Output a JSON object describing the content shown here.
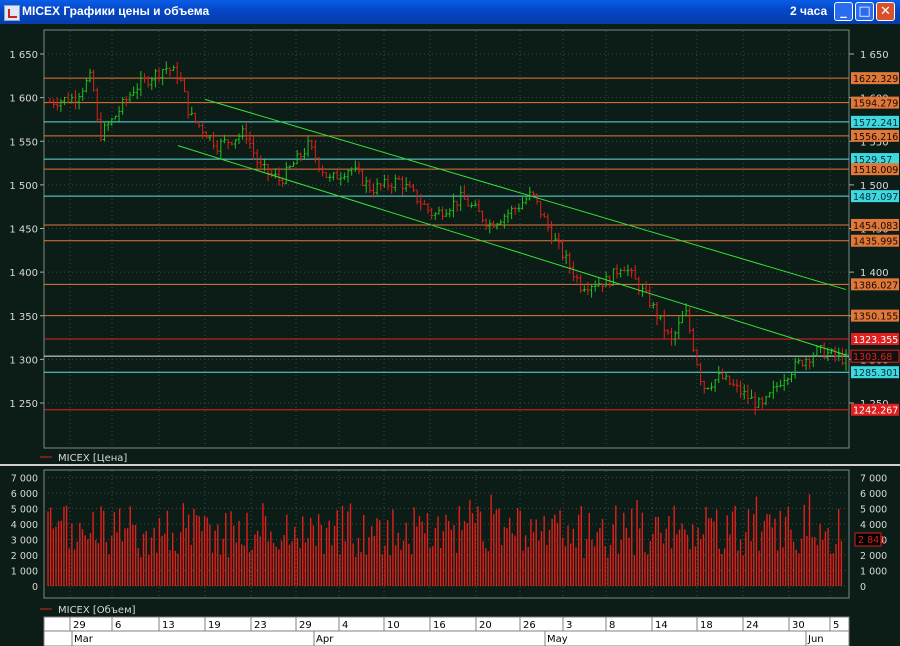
{
  "window": {
    "title": "MICEX Графики цены и объема",
    "timeframe": "2 часа",
    "minimize_glyph": "_",
    "maximize_glyph": "□",
    "close_glyph": "✕"
  },
  "colors": {
    "background": "#0c1c17",
    "grid": "#3c4a44",
    "axis_text": "#d8d8d8",
    "candle_up": "#22c01e",
    "candle_down": "#e0201a",
    "volume": "#e0201a",
    "channel": "#38e038",
    "orange_level": "#e0783a",
    "cyan_level": "#60e0e0",
    "red_level": "#e82020",
    "white_level": "#e8e8e8"
  },
  "price_panel": {
    "legend": "MICEX [Цена]",
    "y_ticks": [
      "1 650",
      "1 600",
      "1 550",
      "1 500",
      "1 450",
      "1 400",
      "1 350",
      "1 300",
      "1 250"
    ],
    "right_ticks": [
      "1 650",
      "1 600",
      "1 550",
      "1 500",
      "1 450",
      "1 400",
      "1 350",
      "1 300",
      "1 250"
    ],
    "levels": [
      {
        "label": "1622.329",
        "kind": "orange"
      },
      {
        "label": "1594.279",
        "kind": "orange"
      },
      {
        "label": "1572.241",
        "kind": "cyan"
      },
      {
        "label": "1556.216",
        "kind": "orange"
      },
      {
        "label": "1529.57",
        "kind": "cyan"
      },
      {
        "label": "1518.009",
        "kind": "orange"
      },
      {
        "label": "1487.097",
        "kind": "cyan"
      },
      {
        "label": "1454.083",
        "kind": "orange"
      },
      {
        "label": "1435.995",
        "kind": "orange"
      },
      {
        "label": "1386.027",
        "kind": "orange"
      },
      {
        "label": "1350.155",
        "kind": "orange"
      },
      {
        "label": "1323.355",
        "kind": "red"
      },
      {
        "label": "1303.68",
        "kind": "current"
      },
      {
        "label": "1285.301",
        "kind": "cyan"
      },
      {
        "label": "1242.267",
        "kind": "red"
      }
    ]
  },
  "volume_panel": {
    "legend": "MICEX [Объем]",
    "y_ticks": [
      "7 000",
      "6 000",
      "5 000",
      "4 000",
      "3 000",
      "2 000",
      "1 000",
      "0"
    ],
    "right_ticks": [
      "7 000",
      "6 000",
      "5 000",
      "4 000",
      "3 000",
      "2 000",
      "1 000",
      "0"
    ],
    "current_label": "2 843"
  },
  "time_axis": {
    "day_labels": [
      "29",
      "6",
      "13",
      "19",
      "23",
      "29",
      "4",
      "10",
      "16",
      "20",
      "26",
      "3",
      "8",
      "14",
      "18",
      "24",
      "30",
      "5"
    ],
    "month_labels": [
      "Mar",
      "Apr",
      "May",
      "Jun"
    ]
  },
  "chart_data": {
    "type": "candlestick",
    "series": [
      {
        "name": "MICEX [Цена]"
      },
      {
        "name": "MICEX [Объем]"
      }
    ],
    "x_start_label": "29 Mar",
    "x_end_label": "5 Jun",
    "price_ylim": [
      1200,
      1680
    ],
    "volume_ylim": [
      0,
      7000
    ],
    "price_path": [
      [
        0,
        1595
      ],
      [
        0.035,
        1600
      ],
      [
        0.06,
        1625
      ],
      [
        0.07,
        1555
      ],
      [
        0.09,
        1575
      ],
      [
        0.12,
        1610
      ],
      [
        0.165,
        1635
      ],
      [
        0.185,
        1625
      ],
      [
        0.2,
        1580
      ],
      [
        0.24,
        1545
      ],
      [
        0.28,
        1560
      ],
      [
        0.3,
        1520
      ],
      [
        0.33,
        1505
      ],
      [
        0.37,
        1545
      ],
      [
        0.4,
        1505
      ],
      [
        0.43,
        1520
      ],
      [
        0.46,
        1495
      ],
      [
        0.5,
        1505
      ],
      [
        0.55,
        1465
      ],
      [
        0.59,
        1485
      ],
      [
        0.63,
        1455
      ],
      [
        0.67,
        1475
      ],
      [
        0.69,
        1490
      ],
      [
        0.72,
        1440
      ],
      [
        0.76,
        1385
      ],
      [
        0.8,
        1390
      ],
      [
        0.82,
        1410
      ],
      [
        0.86,
        1365
      ],
      [
        0.89,
        1320
      ],
      [
        0.91,
        1355
      ],
      [
        0.935,
        1268
      ],
      [
        0.96,
        1280
      ],
      [
        0.99,
        1262
      ],
      [
        1.02,
        1245
      ],
      [
        1.05,
        1280
      ],
      [
        1.08,
        1300
      ],
      [
        1.1,
        1310
      ],
      [
        1.12,
        1305
      ],
      [
        1.14,
        1300
      ]
    ],
    "channel_lines": [
      {
        "from": [
          "19 Mar",
          1598
        ],
        "to": [
          "5 Jun",
          1380
        ]
      },
      {
        "from": [
          "13 Mar",
          1545
        ],
        "to": [
          "5 Jun",
          1305
        ]
      }
    ],
    "horizontal_levels": [
      1622.329,
      1594.279,
      1572.241,
      1556.216,
      1529.57,
      1518.009,
      1487.097,
      1454.083,
      1435.995,
      1386.027,
      1350.155,
      1323.355,
      1303.68,
      1285.301,
      1242.267
    ],
    "current_price": 1303.68,
    "current_volume": 2843
  }
}
